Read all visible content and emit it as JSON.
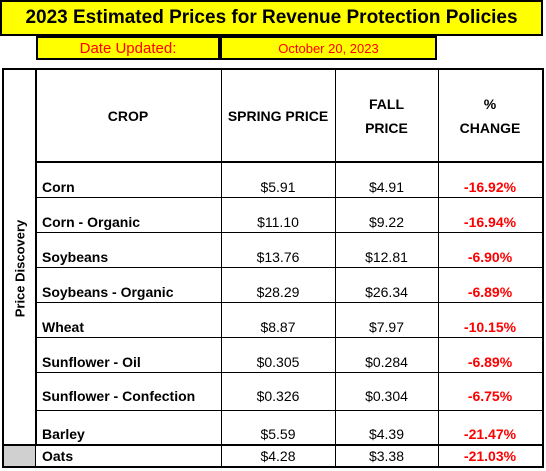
{
  "title": "2023 Estimated Prices for Revenue Protection Policies",
  "date": {
    "label": "Date Updated:",
    "value": "October 20, 2023"
  },
  "side_label": "Price Discovery",
  "headers": {
    "crop": "CROP",
    "spring": "SPRING PRICE",
    "fall_line1": "FALL",
    "fall_line2": "PRICE",
    "change_line1": "%",
    "change_line2": "CHANGE"
  },
  "rows": [
    {
      "crop": "Corn",
      "spring": "$5.91",
      "fall": "$4.91",
      "change": "-16.92%"
    },
    {
      "crop": "Corn - Organic",
      "spring": "$11.10",
      "fall": "$9.22",
      "change": "-16.94%"
    },
    {
      "crop": "Soybeans",
      "spring": "$13.76",
      "fall": "$12.81",
      "change": "-6.90%"
    },
    {
      "crop": "Soybeans - Organic",
      "spring": "$28.29",
      "fall": "$26.34",
      "change": "-6.89%"
    },
    {
      "crop": "Wheat",
      "spring": "$8.87",
      "fall": "$7.97",
      "change": "-10.15%"
    },
    {
      "crop": "Sunflower - Oil",
      "spring": "$0.305",
      "fall": "$0.284",
      "change": "-6.89%"
    },
    {
      "crop": "Sunflower - Confection",
      "spring": "$0.326",
      "fall": "$0.304",
      "change": "-6.75%"
    },
    {
      "crop": "Barley",
      "spring": "$5.59",
      "fall": "$4.39",
      "change": "-21.47%"
    },
    {
      "crop": "Oats",
      "spring": "$4.28",
      "fall": "$3.38",
      "change": "-21.03%"
    }
  ],
  "colors": {
    "banner": "#ffff00",
    "negative": "#ff0000",
    "shade": "#d0d0d0"
  }
}
